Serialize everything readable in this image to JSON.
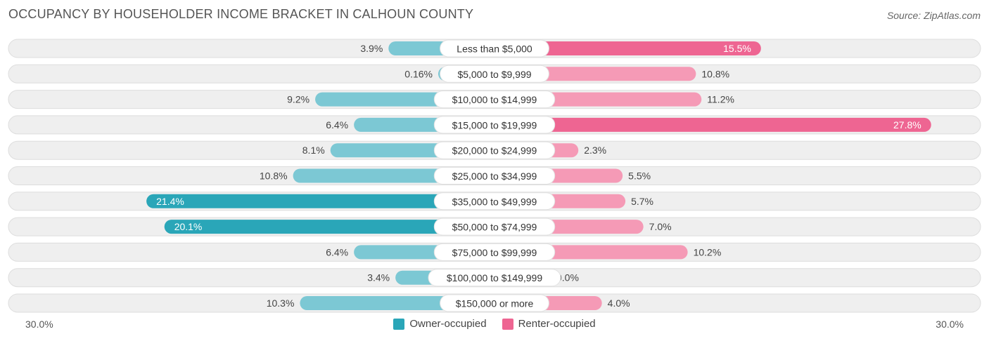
{
  "header": {
    "title": "OCCUPANCY BY HOUSEHOLDER INCOME BRACKET IN CALHOUN COUNTY",
    "source": "Source: ZipAtlas.com"
  },
  "axis": {
    "left_label": "30.0%",
    "right_label": "30.0%"
  },
  "legend": {
    "owner_label": "Owner-occupied",
    "renter_label": "Renter-occupied"
  },
  "colors": {
    "owner": "#7cc8d4",
    "owner_strong": "#2aa6b8",
    "renter": "#f59ab6",
    "renter_strong": "#ee6592",
    "track": "#efefef"
  },
  "chart_data": {
    "type": "bar",
    "orientation": "horizontal-diverging",
    "title": "OCCUPANCY BY HOUSEHOLDER INCOME BRACKET IN CALHOUN COUNTY",
    "xlim": [
      -30,
      30
    ],
    "unit": "%",
    "categories": [
      "Less than $5,000",
      "$5,000 to $9,999",
      "$10,000 to $14,999",
      "$15,000 to $19,999",
      "$20,000 to $24,999",
      "$25,000 to $34,999",
      "$35,000 to $49,999",
      "$50,000 to $74,999",
      "$75,000 to $99,999",
      "$100,000 to $149,999",
      "$150,000 or more"
    ],
    "series": [
      {
        "name": "Owner-occupied",
        "values": [
          3.9,
          0.16,
          9.2,
          6.4,
          8.1,
          10.8,
          21.4,
          20.1,
          6.4,
          3.4,
          10.3
        ],
        "labels": [
          "3.9%",
          "0.16%",
          "9.2%",
          "6.4%",
          "8.1%",
          "10.8%",
          "21.4%",
          "20.1%",
          "6.4%",
          "3.4%",
          "10.3%"
        ]
      },
      {
        "name": "Renter-occupied",
        "values": [
          15.5,
          10.8,
          11.2,
          27.8,
          2.3,
          5.5,
          5.7,
          7.0,
          10.2,
          0.0,
          4.0
        ],
        "labels": [
          "15.5%",
          "10.8%",
          "11.2%",
          "27.8%",
          "2.3%",
          "5.5%",
          "5.7%",
          "7.0%",
          "10.2%",
          "0.0%",
          "4.0%"
        ]
      }
    ],
    "grid": false,
    "legend_position": "bottom-center"
  }
}
